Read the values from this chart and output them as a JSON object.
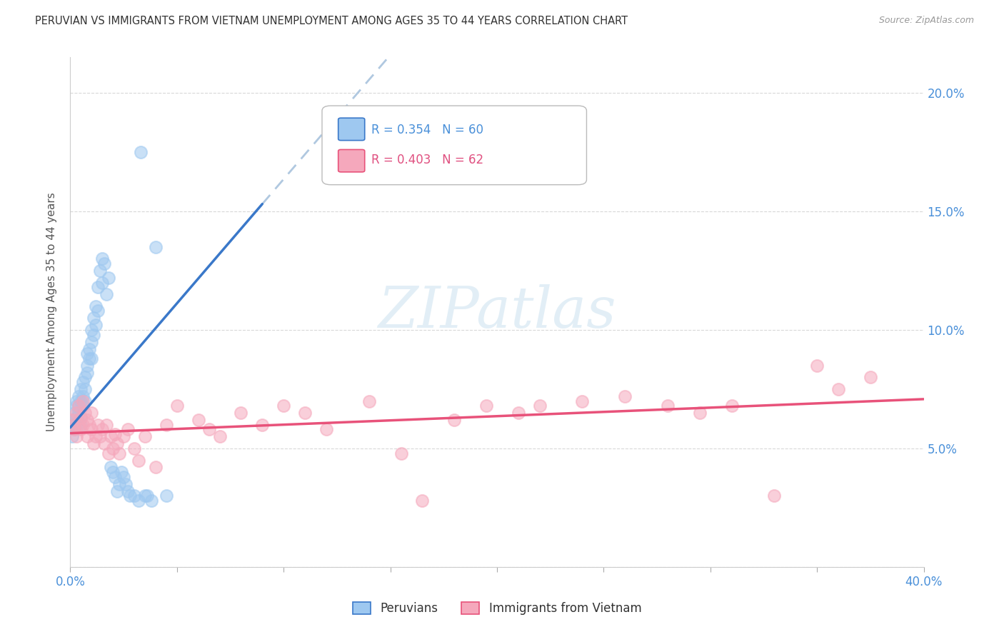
{
  "title": "PERUVIAN VS IMMIGRANTS FROM VIETNAM UNEMPLOYMENT AMONG AGES 35 TO 44 YEARS CORRELATION CHART",
  "source": "Source: ZipAtlas.com",
  "ylabel": "Unemployment Among Ages 35 to 44 years",
  "xlim": [
    0.0,
    0.4
  ],
  "ylim": [
    0.0,
    0.215
  ],
  "xticks": [
    0.0,
    0.05,
    0.1,
    0.15,
    0.2,
    0.25,
    0.3,
    0.35,
    0.4
  ],
  "ytick_right_vals": [
    0.05,
    0.1,
    0.15,
    0.2
  ],
  "ytick_right_labels": [
    "5.0%",
    "10.0%",
    "15.0%",
    "20.0%"
  ],
  "peruvian_color": "#9ec8f0",
  "vietnam_color": "#f5a8bc",
  "peruvian_R": 0.354,
  "peruvian_N": 60,
  "vietnam_R": 0.403,
  "vietnam_N": 62,
  "peruvian_line_color": "#3a78c9",
  "vietnam_line_color": "#e8527a",
  "dashed_line_color": "#b0c8e0",
  "background_color": "#ffffff",
  "grid_color": "#d8d8d8",
  "watermark": "ZIPatlas",
  "peruvian_scatter_x": [
    0.001,
    0.001,
    0.002,
    0.002,
    0.002,
    0.003,
    0.003,
    0.003,
    0.003,
    0.004,
    0.004,
    0.004,
    0.005,
    0.005,
    0.005,
    0.005,
    0.006,
    0.006,
    0.006,
    0.007,
    0.007,
    0.007,
    0.008,
    0.008,
    0.008,
    0.009,
    0.009,
    0.01,
    0.01,
    0.01,
    0.011,
    0.011,
    0.012,
    0.012,
    0.013,
    0.013,
    0.014,
    0.015,
    0.015,
    0.016,
    0.017,
    0.018,
    0.019,
    0.02,
    0.021,
    0.022,
    0.023,
    0.024,
    0.025,
    0.026,
    0.027,
    0.028,
    0.03,
    0.032,
    0.033,
    0.035,
    0.036,
    0.038,
    0.04,
    0.045
  ],
  "peruvian_scatter_y": [
    0.06,
    0.055,
    0.065,
    0.06,
    0.058,
    0.068,
    0.063,
    0.07,
    0.06,
    0.072,
    0.065,
    0.068,
    0.07,
    0.075,
    0.063,
    0.06,
    0.078,
    0.072,
    0.068,
    0.08,
    0.075,
    0.07,
    0.085,
    0.09,
    0.082,
    0.092,
    0.088,
    0.095,
    0.1,
    0.088,
    0.105,
    0.098,
    0.11,
    0.102,
    0.118,
    0.108,
    0.125,
    0.13,
    0.12,
    0.128,
    0.115,
    0.122,
    0.042,
    0.04,
    0.038,
    0.032,
    0.035,
    0.04,
    0.038,
    0.035,
    0.032,
    0.03,
    0.03,
    0.028,
    0.175,
    0.03,
    0.03,
    0.028,
    0.135,
    0.03
  ],
  "vietnam_scatter_x": [
    0.001,
    0.002,
    0.002,
    0.003,
    0.003,
    0.004,
    0.004,
    0.005,
    0.005,
    0.006,
    0.006,
    0.007,
    0.008,
    0.008,
    0.009,
    0.01,
    0.01,
    0.011,
    0.012,
    0.013,
    0.014,
    0.015,
    0.016,
    0.017,
    0.018,
    0.019,
    0.02,
    0.021,
    0.022,
    0.023,
    0.025,
    0.027,
    0.03,
    0.032,
    0.035,
    0.04,
    0.045,
    0.05,
    0.06,
    0.065,
    0.07,
    0.08,
    0.09,
    0.1,
    0.11,
    0.12,
    0.14,
    0.155,
    0.165,
    0.18,
    0.195,
    0.21,
    0.22,
    0.24,
    0.26,
    0.28,
    0.295,
    0.31,
    0.33,
    0.35,
    0.36,
    0.375
  ],
  "vietnam_scatter_y": [
    0.062,
    0.06,
    0.058,
    0.065,
    0.055,
    0.068,
    0.06,
    0.063,
    0.058,
    0.07,
    0.06,
    0.065,
    0.055,
    0.062,
    0.06,
    0.058,
    0.065,
    0.052,
    0.055,
    0.06,
    0.055,
    0.058,
    0.052,
    0.06,
    0.048,
    0.055,
    0.05,
    0.056,
    0.052,
    0.048,
    0.055,
    0.058,
    0.05,
    0.045,
    0.055,
    0.042,
    0.06,
    0.068,
    0.062,
    0.058,
    0.055,
    0.065,
    0.06,
    0.068,
    0.065,
    0.058,
    0.07,
    0.048,
    0.028,
    0.062,
    0.068,
    0.065,
    0.068,
    0.07,
    0.072,
    0.068,
    0.065,
    0.068,
    0.03,
    0.085,
    0.075,
    0.08
  ]
}
